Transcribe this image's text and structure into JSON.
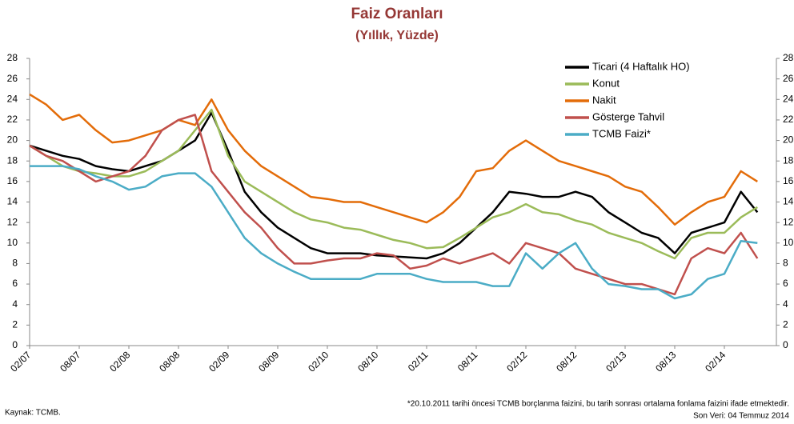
{
  "chart_data": {
    "type": "line",
    "title": "Faiz Oranları",
    "subtitle": "(Yıllık, Yüzde)",
    "source": "Kaynak: TCMB.",
    "footnote": "*20.10.2011 tarihi öncesi TCMB borçlanma faizini, bu tarih sonrası ortalama fonlama faizini ifade etmektedir.",
    "last_data": "Son Veri: 04 Temmuz 2014",
    "categories": [
      "02/07",
      null,
      null,
      "08/07",
      null,
      null,
      "02/08",
      null,
      null,
      "08/08",
      null,
      null,
      "02/09",
      null,
      null,
      "08/09",
      null,
      null,
      "02/10",
      null,
      null,
      "08/10",
      null,
      null,
      "02/11",
      null,
      null,
      "08/11",
      null,
      null,
      "02/12",
      null,
      null,
      "08/12",
      null,
      null,
      "02/13",
      null,
      null,
      "08/13",
      null,
      null,
      "02/14",
      null,
      null
    ],
    "ylim": [
      0,
      28
    ],
    "yticks": [
      0,
      2,
      4,
      6,
      8,
      10,
      12,
      14,
      16,
      18,
      20,
      22,
      24,
      26,
      28
    ],
    "y2lim": [
      0,
      28
    ],
    "y2ticks": [
      0,
      2,
      4,
      6,
      8,
      10,
      12,
      14,
      16,
      18,
      20,
      22,
      24,
      26,
      28
    ],
    "legend": "upper right",
    "series": [
      {
        "name": "Ticari (4 Haftalık HO)",
        "color": "#000000",
        "values": [
          19.5,
          19,
          18.5,
          18.2,
          17.5,
          17.2,
          17,
          17.5,
          18,
          19,
          20,
          22.7,
          19,
          15,
          13,
          11.5,
          10.5,
          9.5,
          9,
          9,
          9,
          8.8,
          8.7,
          8.6,
          8.5,
          9,
          10,
          11.5,
          13,
          15,
          14.8,
          14.5,
          14.5,
          15,
          14.5,
          13,
          12,
          11,
          10.5,
          9,
          11,
          11.5,
          12,
          15,
          13
        ]
      },
      {
        "name": "Konut",
        "color": "#9bbb59",
        "values": [
          19.5,
          18.5,
          17.5,
          17,
          16.8,
          16.5,
          16.5,
          17,
          18,
          19,
          21,
          23,
          18.5,
          16,
          15,
          14,
          13,
          12.3,
          12,
          11.5,
          11.3,
          10.8,
          10.3,
          10,
          9.5,
          9.6,
          10.5,
          11.5,
          12.5,
          13,
          13.8,
          13,
          12.8,
          12.2,
          11.8,
          11,
          10.5,
          10,
          9.2,
          8.5,
          10.5,
          11,
          11,
          12.5,
          13.5
        ]
      },
      {
        "name": "Nakit",
        "color": "#e36c09",
        "values": [
          24.5,
          23.5,
          22,
          22.5,
          21,
          19.8,
          20,
          20.5,
          21,
          22,
          21.5,
          24,
          21,
          19,
          17.5,
          16.5,
          15.5,
          14.5,
          14.3,
          14,
          14,
          13.5,
          13,
          12.5,
          12,
          13,
          14.5,
          17,
          17.3,
          19,
          20,
          19,
          18,
          17.5,
          17,
          16.5,
          15.5,
          15,
          13.5,
          11.8,
          13,
          14,
          14.5,
          17,
          16
        ]
      },
      {
        "name": "Gösterge Tahvil",
        "color": "#c0504d",
        "values": [
          19.5,
          18.5,
          18,
          17,
          16,
          16.5,
          17,
          18.5,
          21,
          22,
          22.5,
          17,
          15,
          13,
          11.5,
          9.5,
          8,
          8,
          8.3,
          8.5,
          8.5,
          9,
          8.8,
          7.5,
          7.8,
          8.5,
          8,
          8.5,
          9,
          8,
          10,
          9.5,
          9,
          7.5,
          7,
          6.5,
          6,
          6,
          5.5,
          5,
          8.5,
          9.5,
          9,
          11,
          8.5
        ]
      },
      {
        "name": "TCMB Faizi*",
        "color": "#4bacc6",
        "values": [
          17.5,
          17.5,
          17.5,
          17.2,
          16.5,
          16,
          15.2,
          15.5,
          16.5,
          16.8,
          16.8,
          15.5,
          13,
          10.5,
          9,
          8,
          7.2,
          6.5,
          6.5,
          6.5,
          6.5,
          7,
          7,
          7,
          6.5,
          6.2,
          6.2,
          6.2,
          5.8,
          5.8,
          9,
          7.5,
          9,
          10,
          7.5,
          6,
          5.8,
          5.5,
          5.5,
          4.6,
          5,
          6.5,
          7,
          10.2,
          10
        ]
      }
    ]
  }
}
